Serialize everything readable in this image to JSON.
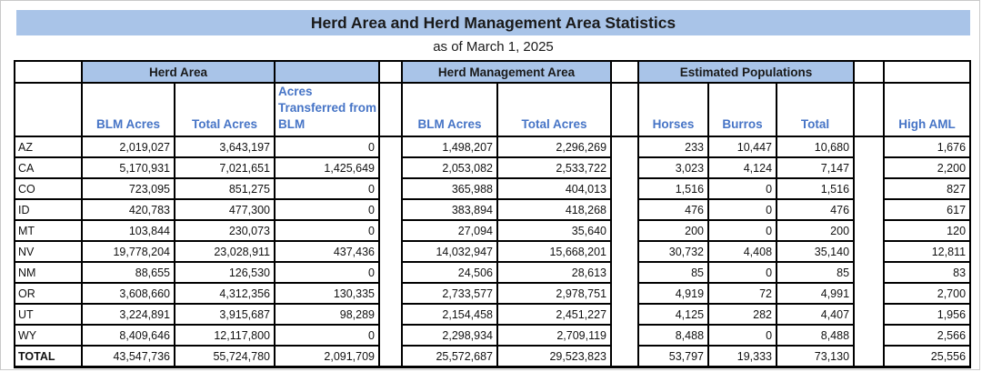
{
  "title": "Herd Area and Herd Management Area Statistics",
  "subtitle": "as of March 1, 2025",
  "colors": {
    "header_fill": "#a9c4e8",
    "header_text_blue": "#4674c6",
    "border": "#000000"
  },
  "groups": {
    "herd_area": "Herd Area",
    "herd_management_area": "Herd Management Area",
    "estimated_populations": "Estimated Populations"
  },
  "columns": {
    "ha_blm": "BLM Acres",
    "ha_total": "Total Acres",
    "ha_transferred": "Acres Transferred from BLM",
    "hma_blm": "BLM Acres",
    "hma_total": "Total Acres",
    "horses": "Horses",
    "burros": "Burros",
    "pop_total": "Total",
    "high_aml": "High AML"
  },
  "rows": [
    {
      "state": "AZ",
      "ha_blm": "2,019,027",
      "ha_total": "3,643,197",
      "ha_transferred": "0",
      "hma_blm": "1,498,207",
      "hma_total": "2,296,269",
      "horses": "233",
      "burros": "10,447",
      "pop_total": "10,680",
      "high_aml": "1,676"
    },
    {
      "state": "CA",
      "ha_blm": "5,170,931",
      "ha_total": "7,021,651",
      "ha_transferred": "1,425,649",
      "hma_blm": "2,053,082",
      "hma_total": "2,533,722",
      "horses": "3,023",
      "burros": "4,124",
      "pop_total": "7,147",
      "high_aml": "2,200"
    },
    {
      "state": "CO",
      "ha_blm": "723,095",
      "ha_total": "851,275",
      "ha_transferred": "0",
      "hma_blm": "365,988",
      "hma_total": "404,013",
      "horses": "1,516",
      "burros": "0",
      "pop_total": "1,516",
      "high_aml": "827"
    },
    {
      "state": "ID",
      "ha_blm": "420,783",
      "ha_total": "477,300",
      "ha_transferred": "0",
      "hma_blm": "383,894",
      "hma_total": "418,268",
      "horses": "476",
      "burros": "0",
      "pop_total": "476",
      "high_aml": "617"
    },
    {
      "state": "MT",
      "ha_blm": "103,844",
      "ha_total": "230,073",
      "ha_transferred": "0",
      "hma_blm": "27,094",
      "hma_total": "35,640",
      "horses": "200",
      "burros": "0",
      "pop_total": "200",
      "high_aml": "120"
    },
    {
      "state": "NV",
      "ha_blm": "19,778,204",
      "ha_total": "23,028,911",
      "ha_transferred": "437,436",
      "hma_blm": "14,032,947",
      "hma_total": "15,668,201",
      "horses": "30,732",
      "burros": "4,408",
      "pop_total": "35,140",
      "high_aml": "12,811"
    },
    {
      "state": "NM",
      "ha_blm": "88,655",
      "ha_total": "126,530",
      "ha_transferred": "0",
      "hma_blm": "24,506",
      "hma_total": "28,613",
      "horses": "85",
      "burros": "0",
      "pop_total": "85",
      "high_aml": "83"
    },
    {
      "state": "OR",
      "ha_blm": "3,608,660",
      "ha_total": "4,312,356",
      "ha_transferred": "130,335",
      "hma_blm": "2,733,577",
      "hma_total": "2,978,751",
      "horses": "4,919",
      "burros": "72",
      "pop_total": "4,991",
      "high_aml": "2,700"
    },
    {
      "state": "UT",
      "ha_blm": "3,224,891",
      "ha_total": "3,915,687",
      "ha_transferred": "98,289",
      "hma_blm": "2,154,458",
      "hma_total": "2,451,227",
      "horses": "4,125",
      "burros": "282",
      "pop_total": "4,407",
      "high_aml": "1,956"
    },
    {
      "state": "WY",
      "ha_blm": "8,409,646",
      "ha_total": "12,117,800",
      "ha_transferred": "0",
      "hma_blm": "2,298,934",
      "hma_total": "2,709,119",
      "horses": "8,488",
      "burros": "0",
      "pop_total": "8,488",
      "high_aml": "2,566"
    },
    {
      "state": "TOTAL",
      "ha_blm": "43,547,736",
      "ha_total": "55,724,780",
      "ha_transferred": "2,091,709",
      "hma_blm": "25,572,687",
      "hma_total": "29,523,823",
      "horses": "53,797",
      "burros": "19,333",
      "pop_total": "73,130",
      "high_aml": "25,556"
    }
  ]
}
